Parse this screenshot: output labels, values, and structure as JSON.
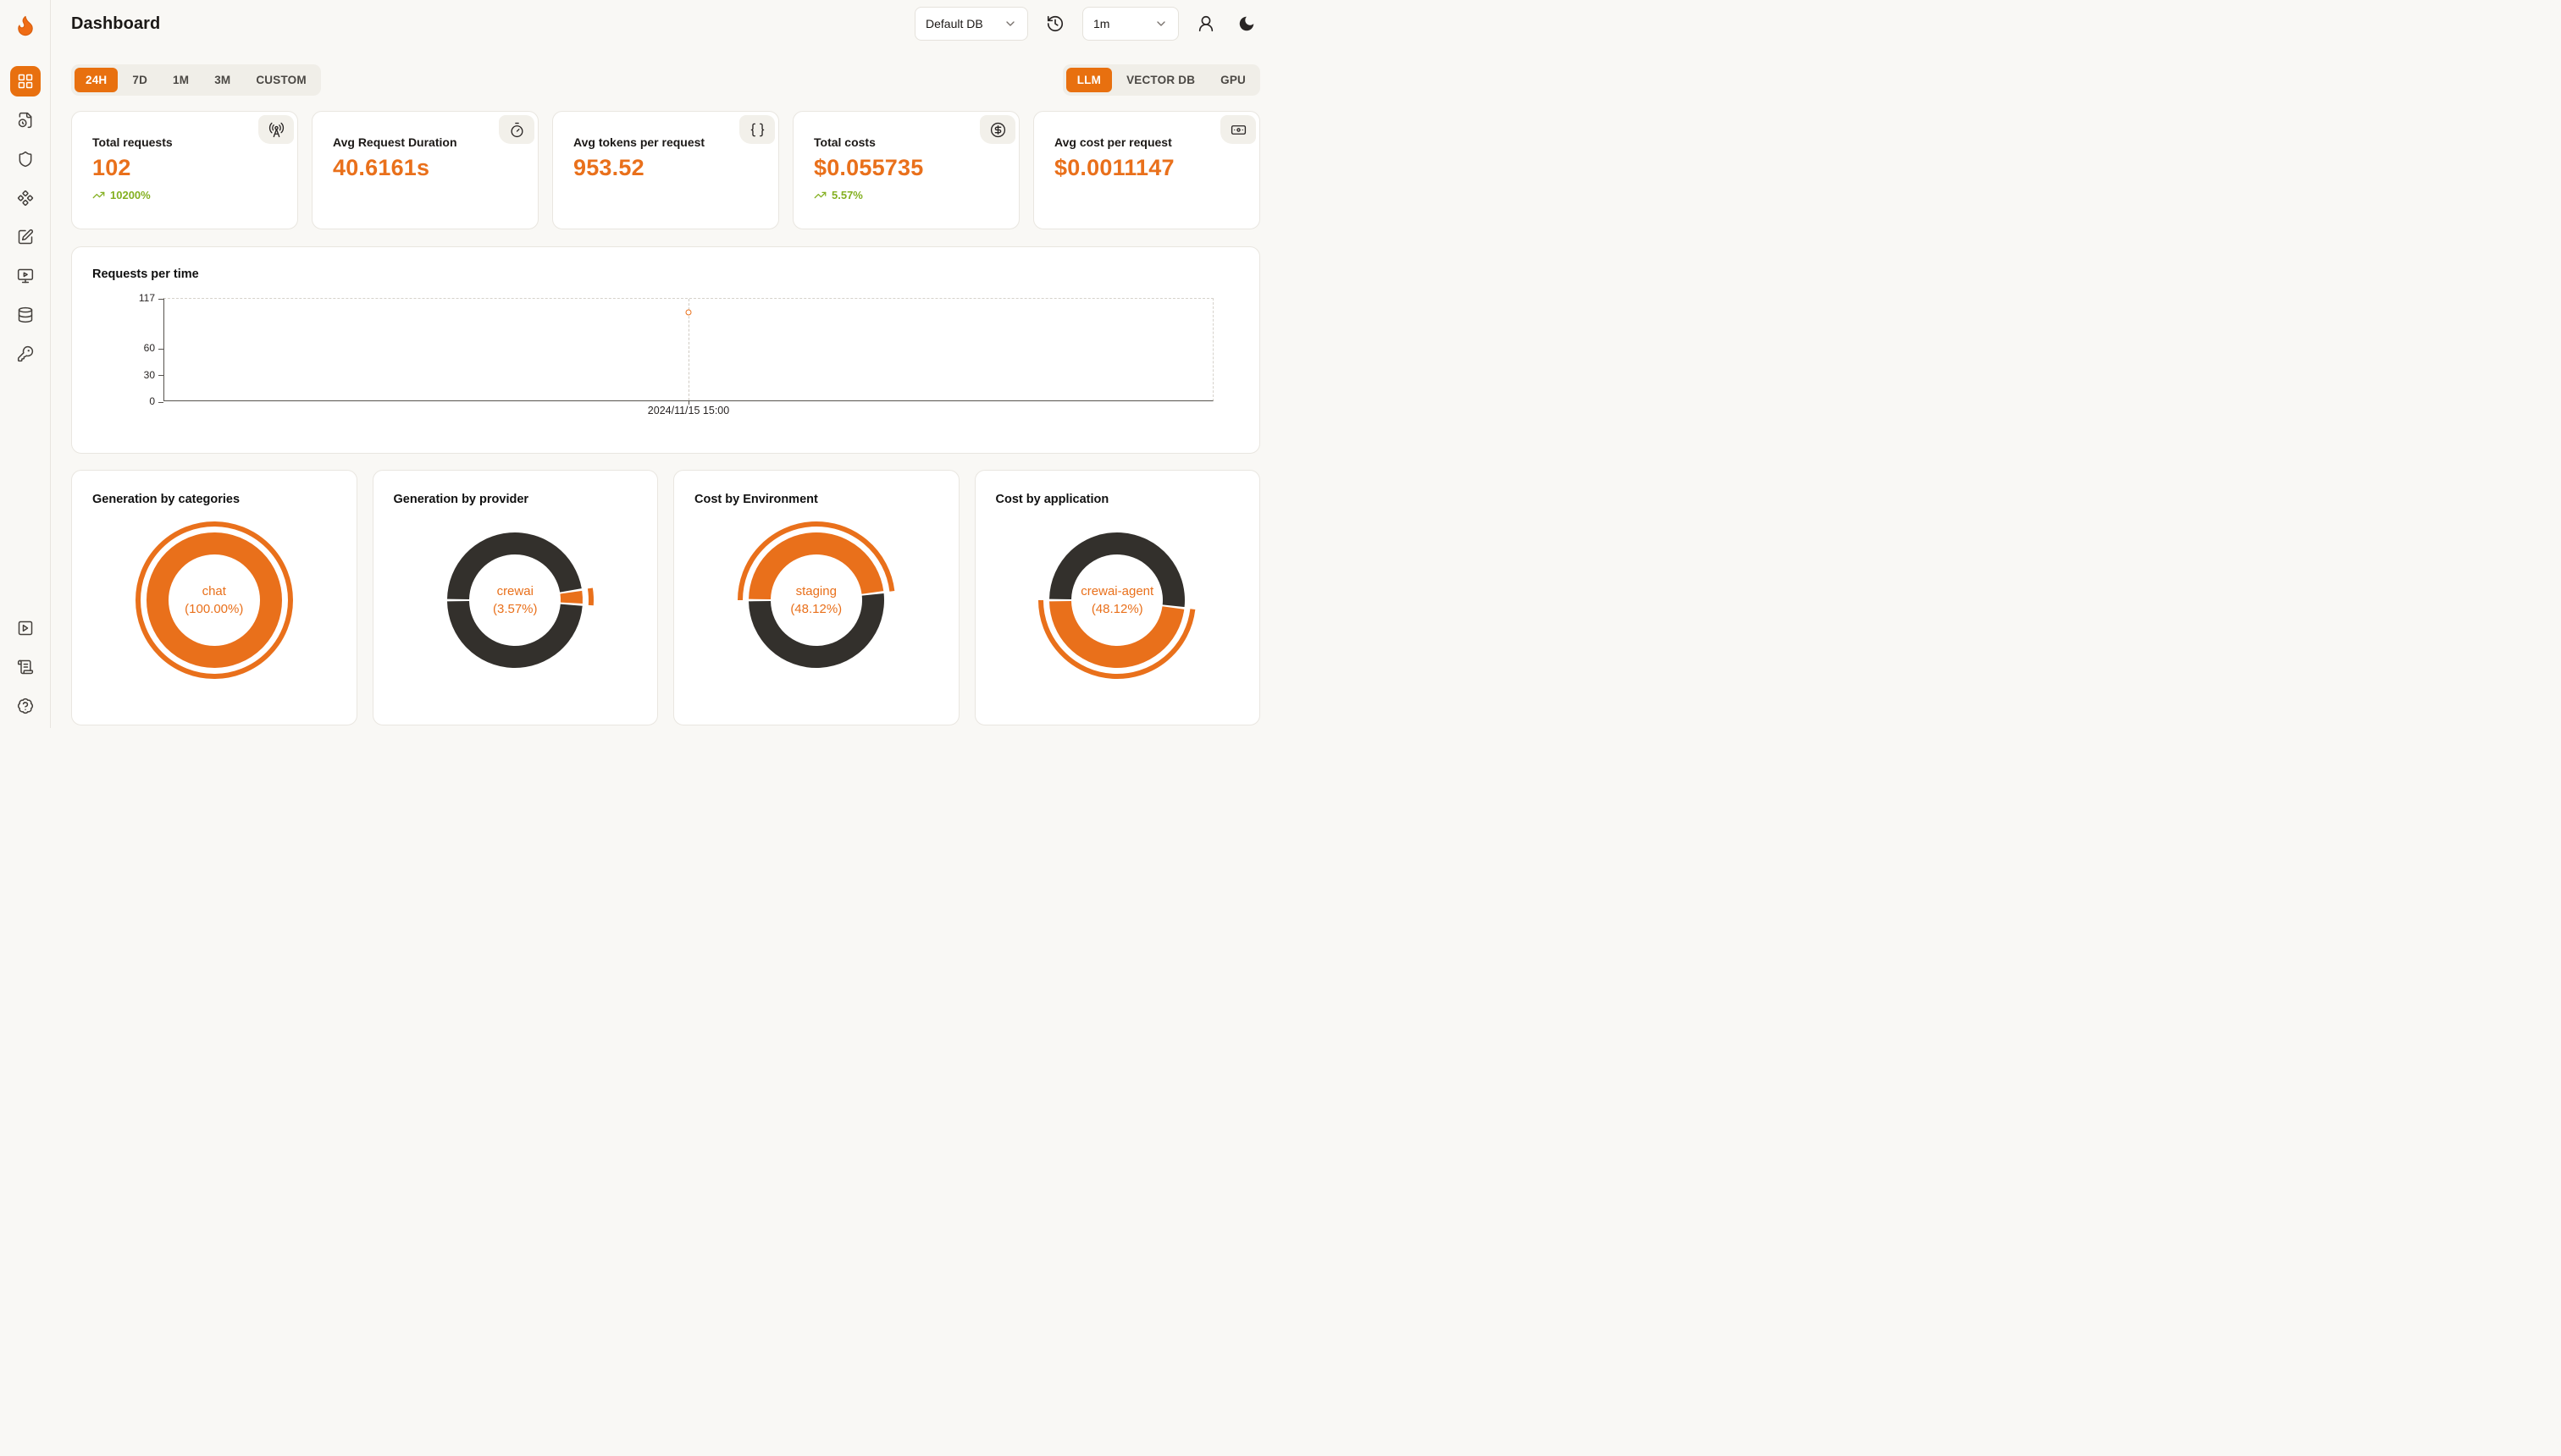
{
  "app": {
    "title": "Dashboard"
  },
  "header": {
    "db_select": {
      "value": "Default DB"
    },
    "interval_select": {
      "value": "1m"
    },
    "icons": [
      "history-icon",
      "user-icon",
      "moon-icon"
    ]
  },
  "filters": {
    "time_ranges": [
      "24H",
      "7D",
      "1M",
      "3M",
      "CUSTOM"
    ],
    "active_time_range": "24H",
    "modes": [
      "LLM",
      "VECTOR DB",
      "GPU"
    ],
    "active_mode": "LLM"
  },
  "stats": [
    {
      "label": "Total requests",
      "value": "102",
      "delta": "10200%",
      "icon": "radio-tower-icon"
    },
    {
      "label": "Avg Request Duration",
      "value": "40.6161s",
      "delta": "",
      "icon": "timer-icon"
    },
    {
      "label": "Avg tokens per request",
      "value": "953.52",
      "delta": "",
      "icon": "braces-icon"
    },
    {
      "label": "Total costs",
      "value": "$0.055735",
      "delta": "5.57%",
      "icon": "circle-dollar-icon"
    },
    {
      "label": "Avg cost per request",
      "value": "$0.0011147",
      "delta": "",
      "icon": "banknote-icon"
    }
  ],
  "chart_data": [
    {
      "type": "line",
      "title": "Requests per time",
      "x": [
        "2024/11/15 15:00"
      ],
      "values": [
        102
      ],
      "ylim": [
        0,
        117
      ],
      "yticks": [
        0,
        30,
        60,
        117
      ],
      "grid": "dashed-frame",
      "point_color": "#e9701b"
    },
    {
      "type": "pie",
      "title": "Generation by categories",
      "center_label": "chat",
      "center_pct": "(100.00%)",
      "active": "chat",
      "slices": [
        {
          "label": "chat",
          "pct": 100,
          "color": "#e9701b"
        }
      ]
    },
    {
      "type": "pie",
      "title": "Generation by provider",
      "center_label": "crewai",
      "center_pct": "(3.57%)",
      "active": "crewai",
      "slices": [
        {
          "label": "",
          "pct": 47.5,
          "color": "#33302c"
        },
        {
          "label": "crewai",
          "pct": 3.57,
          "color": "#e9701b"
        },
        {
          "label": "",
          "pct": 48.93,
          "color": "#33302c"
        }
      ]
    },
    {
      "type": "pie",
      "title": "Cost by Environment",
      "center_label": "staging",
      "center_pct": "(48.12%)",
      "active": "staging",
      "slices": [
        {
          "label": "staging",
          "pct": 48.12,
          "color": "#e9701b"
        },
        {
          "label": "",
          "pct": 51.88,
          "color": "#33302c"
        }
      ]
    },
    {
      "type": "pie",
      "title": "Cost by application",
      "center_label": "crewai-agent",
      "center_pct": "(48.12%)",
      "active": "crewai-agent",
      "slices": [
        {
          "label": "",
          "pct": 51.88,
          "color": "#33302c"
        },
        {
          "label": "crewai-agent",
          "pct": 48.12,
          "color": "#e9701b"
        }
      ]
    }
  ],
  "colors": {
    "accent": "#e9701b",
    "dark_slice": "#33302c",
    "positive_green": "#84b021",
    "page_bg": "#f9f8f5"
  }
}
